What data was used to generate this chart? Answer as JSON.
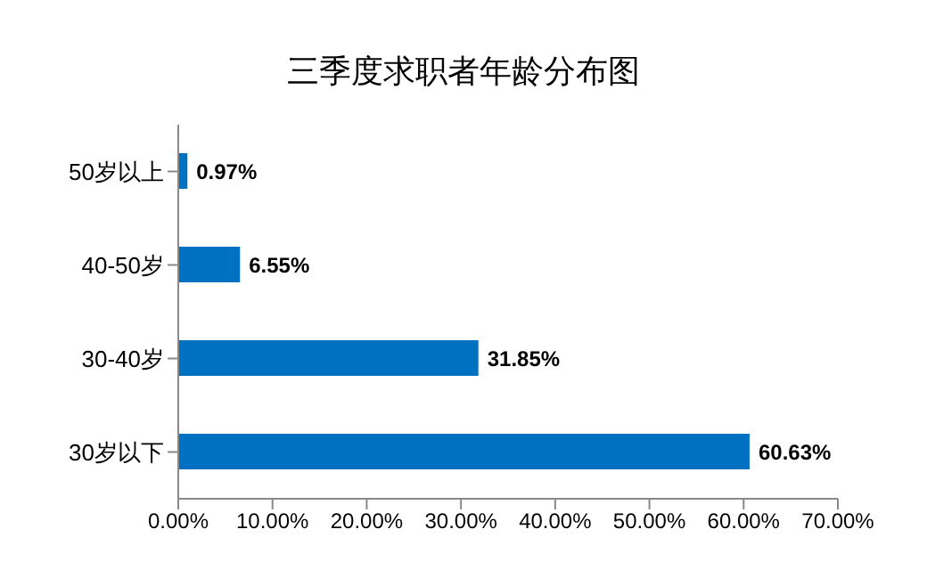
{
  "chart_data": {
    "type": "bar",
    "orientation": "horizontal",
    "title": "三季度求职者年龄分布图",
    "categories": [
      "50岁以上",
      "40-50岁",
      "30-40岁",
      "30岁以下"
    ],
    "values": [
      0.97,
      6.55,
      31.85,
      60.63
    ],
    "value_labels": [
      "0.97%",
      "6.55%",
      "31.85%",
      "60.63%"
    ],
    "color": "#0070c0",
    "xlim": [
      0,
      70
    ],
    "xticks": [
      {
        "value": 0,
        "label": "0.00%"
      },
      {
        "value": 10,
        "label": "10.00%"
      },
      {
        "value": 20,
        "label": "20.00%"
      },
      {
        "value": 30,
        "label": "30.00%"
      },
      {
        "value": 40,
        "label": "40.00%"
      },
      {
        "value": 50,
        "label": "50.00%"
      },
      {
        "value": 60,
        "label": "60.00%"
      },
      {
        "value": 70,
        "label": "70.00%"
      }
    ]
  }
}
